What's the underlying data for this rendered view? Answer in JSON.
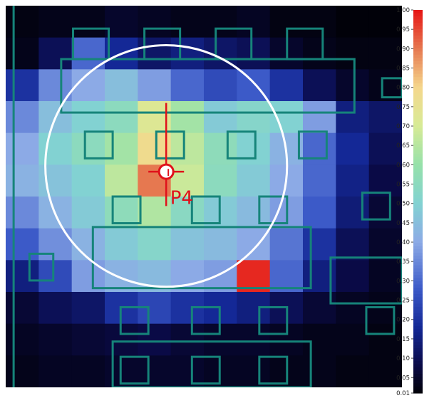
{
  "chart_data": {
    "type": "heatmap",
    "title": "",
    "xlabel": "",
    "ylabel": "",
    "colorbar": {
      "min": 0.01,
      "max": 1.0,
      "tick_labels": [
        "1.00",
        "0.95",
        "0.90",
        "0.85",
        "0.80",
        "0.75",
        "0.70",
        "0.65",
        "0.60",
        "0.55",
        "0.50",
        "0.45",
        "0.40",
        "0.35",
        "0.30",
        "0.25",
        "0.20",
        "0.15",
        "0.10",
        "0.05",
        "0.01"
      ],
      "ticks": [
        1.0,
        0.95,
        0.9,
        0.85,
        0.8,
        0.75,
        0.7,
        0.65,
        0.6,
        0.55,
        0.5,
        0.45,
        0.4,
        0.35,
        0.3,
        0.25,
        0.2,
        0.15,
        0.1,
        0.05,
        0.01
      ]
    },
    "grid_shape": [
      12,
      12
    ],
    "values": [
      [
        0.02,
        0.03,
        0.03,
        0.05,
        0.04,
        0.03,
        0.03,
        0.04,
        0.02,
        0.02,
        0.01,
        0.01
      ],
      [
        0.03,
        0.1,
        0.3,
        0.18,
        0.12,
        0.15,
        0.12,
        0.1,
        0.05,
        0.03,
        0.02,
        0.02
      ],
      [
        0.2,
        0.35,
        0.4,
        0.45,
        0.38,
        0.3,
        0.25,
        0.28,
        0.2,
        0.1,
        0.05,
        0.03
      ],
      [
        0.35,
        0.45,
        0.5,
        0.55,
        0.72,
        0.62,
        0.48,
        0.52,
        0.5,
        0.38,
        0.15,
        0.12
      ],
      [
        0.4,
        0.5,
        0.55,
        0.62,
        0.78,
        0.66,
        0.56,
        0.5,
        0.42,
        0.3,
        0.18,
        0.1
      ],
      [
        0.42,
        0.46,
        0.5,
        0.66,
        0.9,
        0.68,
        0.55,
        0.48,
        0.4,
        0.3,
        0.16,
        0.08
      ],
      [
        0.35,
        0.42,
        0.48,
        0.56,
        0.64,
        0.54,
        0.48,
        0.44,
        0.38,
        0.28,
        0.14,
        0.06
      ],
      [
        0.28,
        0.36,
        0.42,
        0.48,
        0.52,
        0.46,
        0.44,
        0.4,
        0.32,
        0.2,
        0.1,
        0.05
      ],
      [
        0.15,
        0.25,
        0.38,
        0.42,
        0.44,
        0.4,
        0.38,
        0.98,
        0.3,
        0.15,
        0.08,
        0.04
      ],
      [
        0.06,
        0.1,
        0.12,
        0.2,
        0.24,
        0.2,
        0.18,
        0.15,
        0.1,
        0.06,
        0.04,
        0.03
      ],
      [
        0.04,
        0.05,
        0.06,
        0.07,
        0.08,
        0.06,
        0.05,
        0.05,
        0.04,
        0.03,
        0.03,
        0.02
      ],
      [
        0.03,
        0.04,
        0.04,
        0.05,
        0.05,
        0.05,
        0.04,
        0.04,
        0.03,
        0.03,
        0.02,
        0.02
      ]
    ],
    "marker": {
      "label": "P4",
      "value": 0.9
    },
    "circle": {
      "color": "#ffffff"
    },
    "overlay_color": "#16847a",
    "marker_color": "#e0111b",
    "grid": false
  }
}
